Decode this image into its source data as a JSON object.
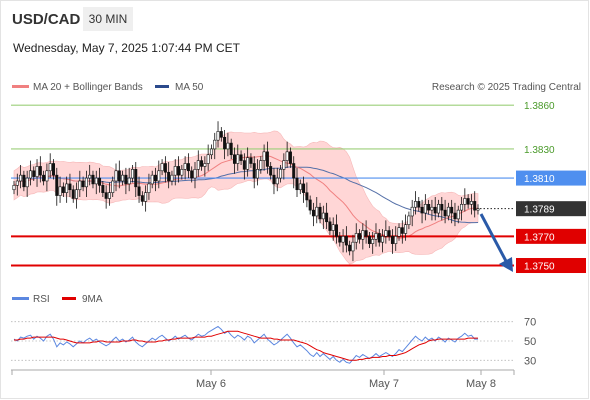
{
  "header": {
    "symbol": "USD/CAD",
    "timeframe": "30 MIN",
    "datetime": "Wednesday, May 7, 2025 1:07:44 PM CET"
  },
  "legend": {
    "ma20_bb": "MA 20 + Bollinger Bands",
    "ma50": "MA 50",
    "rsi": "RSI",
    "ma9": "9MA",
    "credit": "Research © 2025 Trading Central"
  },
  "colors": {
    "ma20": "#f08080",
    "ma50": "#2b4a8c",
    "band": "#ffd6d6",
    "resistance": "#9ccf7a",
    "pivot": "#4f8fef",
    "support": "#e00000",
    "rsi": "#5b87e0",
    "rsi_ma": "#e00000",
    "candle": "#111111",
    "arrow": "#2a5aa8"
  },
  "chart_data": [
    {
      "type": "candlestick",
      "title": "",
      "ylim": [
        1.3738,
        1.3867
      ],
      "x_ticks": [
        "May 6",
        "May 7",
        "May 8"
      ],
      "current_price": "1.3789",
      "levels": [
        {
          "label": "1.3860",
          "value": 1.386,
          "kind": "resistance"
        },
        {
          "label": "1.3830",
          "value": 1.383,
          "kind": "resistance"
        },
        {
          "label": "1.3810",
          "value": 1.381,
          "kind": "pivot"
        },
        {
          "label": "1.3770",
          "value": 1.377,
          "kind": "support"
        },
        {
          "label": "1.3750",
          "value": 1.375,
          "kind": "support"
        }
      ],
      "close": [
        1.3805,
        1.3808,
        1.3812,
        1.3804,
        1.381,
        1.3815,
        1.3811,
        1.3818,
        1.3812,
        1.3808,
        1.3815,
        1.382,
        1.3812,
        1.3798,
        1.3804,
        1.38,
        1.3806,
        1.3802,
        1.3796,
        1.3802,
        1.3808,
        1.3804,
        1.381,
        1.3812,
        1.3806,
        1.381,
        1.3805,
        1.38,
        1.3796,
        1.38,
        1.3808,
        1.3815,
        1.3808,
        1.3812,
        1.3806,
        1.381,
        1.3816,
        1.3804,
        1.3798,
        1.3794,
        1.38,
        1.3806,
        1.3812,
        1.3808,
        1.3815,
        1.382,
        1.3814,
        1.3808,
        1.3812,
        1.3818,
        1.3812,
        1.3816,
        1.382,
        1.3815,
        1.381,
        1.3816,
        1.3822,
        1.3818,
        1.382,
        1.3826,
        1.383,
        1.3836,
        1.3842,
        1.3838,
        1.383,
        1.3834,
        1.3826,
        1.382,
        1.3826,
        1.3822,
        1.3816,
        1.3824,
        1.382,
        1.381,
        1.3816,
        1.3822,
        1.3828,
        1.3818,
        1.3812,
        1.3806,
        1.381,
        1.3816,
        1.3822,
        1.3828,
        1.382,
        1.381,
        1.3802,
        1.3806,
        1.38,
        1.3795,
        1.3788,
        1.3784,
        1.379,
        1.3782,
        1.3786,
        1.378,
        1.3774,
        1.3778,
        1.377,
        1.3766,
        1.377,
        1.3764,
        1.376,
        1.3766,
        1.3772,
        1.3768,
        1.3774,
        1.377,
        1.3765,
        1.3768,
        1.3772,
        1.3766,
        1.377,
        1.3774,
        1.377,
        1.3765,
        1.377,
        1.3776,
        1.3772,
        1.3778,
        1.3784,
        1.379,
        1.3794,
        1.379,
        1.3786,
        1.3792,
        1.3788,
        1.379,
        1.3786,
        1.3792,
        1.3788,
        1.3784,
        1.379,
        1.3786,
        1.3782,
        1.3788,
        1.3792,
        1.3796,
        1.3792,
        1.3794,
        1.3788,
        1.3789
      ]
    },
    {
      "type": "line",
      "title": "",
      "ylim": [
        20,
        80
      ],
      "y_ticks": [
        70,
        50,
        30
      ],
      "series": [
        {
          "name": "RSI",
          "values": [
            52,
            50,
            54,
            53,
            55,
            56,
            52,
            55,
            53,
            50,
            55,
            57,
            52,
            44,
            48,
            46,
            49,
            47,
            44,
            47,
            50,
            48,
            51,
            53,
            50,
            52,
            49,
            47,
            45,
            47,
            51,
            54,
            50,
            52,
            49,
            51,
            54,
            49,
            46,
            44,
            47,
            50,
            53,
            51,
            54,
            56,
            53,
            50,
            52,
            55,
            52,
            54,
            56,
            53,
            51,
            54,
            57,
            55,
            56,
            59,
            61,
            63,
            65,
            62,
            58,
            60,
            56,
            53,
            56,
            54,
            51,
            55,
            53,
            48,
            51,
            54,
            57,
            52,
            49,
            46,
            48,
            51,
            54,
            57,
            53,
            48,
            44,
            46,
            43,
            40,
            36,
            34,
            38,
            34,
            37,
            34,
            31,
            34,
            30,
            28,
            31,
            28,
            27,
            31,
            35,
            33,
            36,
            34,
            32,
            34,
            37,
            34,
            36,
            38,
            36,
            34,
            37,
            41,
            39,
            43,
            47,
            51,
            55,
            52,
            50,
            54,
            51,
            53,
            50,
            54,
            52,
            49,
            53,
            51,
            49,
            53,
            55,
            58,
            55,
            56,
            52,
            52
          ]
        },
        {
          "name": "9MA",
          "values": [
            51,
            51,
            52,
            52,
            53,
            53,
            54,
            54,
            54,
            54,
            54,
            54,
            54,
            53,
            52,
            52,
            51,
            50,
            49,
            48,
            48,
            48,
            48,
            48,
            49,
            49,
            50,
            50,
            49,
            49,
            49,
            49,
            49,
            50,
            50,
            50,
            51,
            51,
            50,
            50,
            49,
            49,
            49,
            49,
            50,
            50,
            51,
            51,
            52,
            52,
            53,
            53,
            53,
            53,
            53,
            54,
            54,
            54,
            54,
            55,
            55,
            56,
            57,
            58,
            59,
            60,
            60,
            60,
            60,
            59,
            58,
            57,
            56,
            55,
            54,
            53,
            53,
            53,
            53,
            52,
            52,
            51,
            51,
            51,
            51,
            51,
            50,
            49,
            48,
            47,
            45,
            43,
            41,
            40,
            38,
            37,
            36,
            35,
            34,
            33,
            32,
            31,
            30,
            30,
            30,
            31,
            31,
            32,
            32,
            33,
            33,
            33,
            34,
            34,
            35,
            35,
            35,
            36,
            37,
            38,
            40,
            42,
            44,
            46,
            47,
            48,
            50,
            51,
            51,
            52,
            52,
            52,
            52,
            52,
            52,
            52,
            52,
            52,
            53,
            53,
            53,
            53
          ]
        }
      ]
    }
  ]
}
